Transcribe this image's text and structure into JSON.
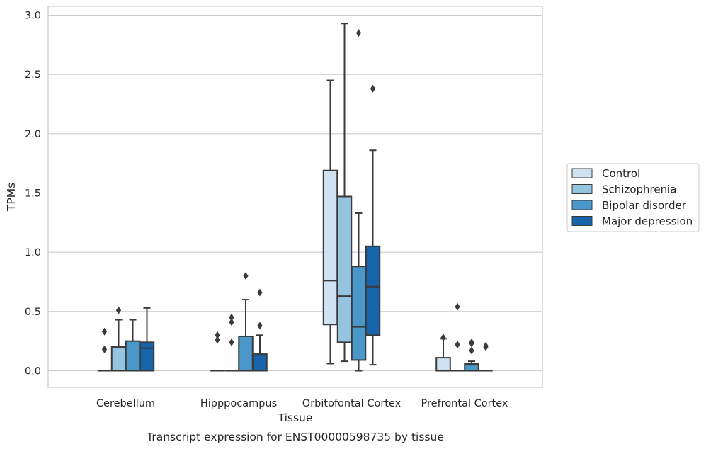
{
  "chart_data": {
    "type": "box",
    "title": "",
    "caption": "Transcript expression for ENST00000598735 by tissue",
    "xlabel": "Tissue",
    "ylabel": "TPMs",
    "ylim": [
      -0.14,
      3.08
    ],
    "yticks": [
      "0.0",
      "0.5",
      "1.0",
      "1.5",
      "2.0",
      "2.5",
      "3.0"
    ],
    "ytick_values": [
      0,
      0.5,
      1.0,
      1.5,
      2.0,
      2.5,
      3.0
    ],
    "grid": "horizontal",
    "legend_position": "right",
    "categories": [
      "Cerebellum",
      "Hipppocampus",
      "Orbitofontal Cortex",
      "Prefrontal Cortex"
    ],
    "series": [
      {
        "name": "Control",
        "color": "#d0e1f2",
        "boxes": [
          {
            "q1": 0,
            "median": 0,
            "q3": 0,
            "whisker_low": 0,
            "whisker_high": 0,
            "outliers": [
              0.33,
              0.18
            ]
          },
          {
            "q1": 0,
            "median": 0,
            "q3": 0,
            "whisker_low": 0,
            "whisker_high": 0,
            "outliers": [
              0.3,
              0.26
            ]
          },
          {
            "q1": 0.39,
            "median": 0.76,
            "q3": 1.69,
            "whisker_low": 0.06,
            "whisker_high": 2.45,
            "outliers": []
          },
          {
            "q1": 0,
            "median": 0,
            "q3": 0.11,
            "whisker_low": 0,
            "whisker_high": 0.27,
            "outliers": [
              0.28
            ]
          }
        ]
      },
      {
        "name": "Schizophrenia",
        "color": "#94c4df",
        "boxes": [
          {
            "q1": 0,
            "median": 0,
            "q3": 0.2,
            "whisker_low": 0,
            "whisker_high": 0.43,
            "outliers": [
              0.51
            ]
          },
          {
            "q1": 0,
            "median": 0,
            "q3": 0,
            "whisker_low": 0,
            "whisker_high": 0,
            "outliers": [
              0.45,
              0.41,
              0.24
            ]
          },
          {
            "q1": 0.24,
            "median": 0.63,
            "q3": 1.47,
            "whisker_low": 0.08,
            "whisker_high": 2.93,
            "outliers": []
          },
          {
            "q1": 0,
            "median": 0,
            "q3": 0,
            "whisker_low": 0,
            "whisker_high": 0,
            "outliers": [
              0.54,
              0.22
            ]
          }
        ]
      },
      {
        "name": "Bipolar disorder",
        "color": "#4a98c9",
        "boxes": [
          {
            "q1": 0,
            "median": 0,
            "q3": 0.25,
            "whisker_low": 0,
            "whisker_high": 0.43,
            "outliers": []
          },
          {
            "q1": 0,
            "median": 0,
            "q3": 0.29,
            "whisker_low": 0,
            "whisker_high": 0.6,
            "outliers": [
              0.8
            ]
          },
          {
            "q1": 0.09,
            "median": 0.37,
            "q3": 0.88,
            "whisker_low": 0,
            "whisker_high": 1.33,
            "outliers": [
              2.85
            ]
          },
          {
            "q1": 0,
            "median": 0.05,
            "q3": 0.06,
            "whisker_low": 0,
            "whisker_high": 0.08,
            "outliers": [
              0.24,
              0.23,
              0.17
            ]
          }
        ]
      },
      {
        "name": "Major depression",
        "color": "#1764ab",
        "boxes": [
          {
            "q1": 0,
            "median": 0.19,
            "q3": 0.24,
            "whisker_low": 0,
            "whisker_high": 0.53,
            "outliers": []
          },
          {
            "q1": 0,
            "median": 0,
            "q3": 0.14,
            "whisker_low": 0,
            "whisker_high": 0.3,
            "outliers": [
              0.66,
              0.38
            ]
          },
          {
            "q1": 0.3,
            "median": 0.71,
            "q3": 1.05,
            "whisker_low": 0.05,
            "whisker_high": 1.86,
            "outliers": [
              2.38
            ]
          },
          {
            "q1": 0,
            "median": 0,
            "q3": 0,
            "whisker_low": 0,
            "whisker_high": 0,
            "outliers": [
              0.21,
              0.2
            ]
          }
        ]
      }
    ]
  }
}
